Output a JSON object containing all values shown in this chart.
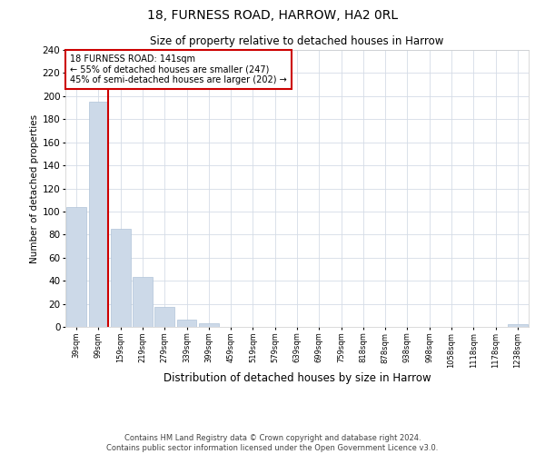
{
  "title": "18, FURNESS ROAD, HARROW, HA2 0RL",
  "subtitle": "Size of property relative to detached houses in Harrow",
  "xlabel": "Distribution of detached houses by size in Harrow",
  "ylabel": "Number of detached properties",
  "bar_labels": [
    "39sqm",
    "99sqm",
    "159sqm",
    "219sqm",
    "279sqm",
    "339sqm",
    "399sqm",
    "459sqm",
    "519sqm",
    "579sqm",
    "639sqm",
    "699sqm",
    "759sqm",
    "818sqm",
    "878sqm",
    "938sqm",
    "998sqm",
    "1058sqm",
    "1118sqm",
    "1178sqm",
    "1238sqm"
  ],
  "bar_values": [
    104,
    195,
    85,
    43,
    17,
    6,
    3,
    0,
    0,
    0,
    0,
    0,
    0,
    0,
    0,
    0,
    0,
    0,
    0,
    0,
    2
  ],
  "bar_color": "#ccd9e8",
  "bar_edge_color": "#b0c4d8",
  "vline_x": 1.42,
  "vline_color": "#cc0000",
  "ylim": [
    0,
    240
  ],
  "yticks": [
    0,
    20,
    40,
    60,
    80,
    100,
    120,
    140,
    160,
    180,
    200,
    220,
    240
  ],
  "annotation_title": "18 FURNESS ROAD: 141sqm",
  "annotation_line1": "← 55% of detached houses are smaller (247)",
  "annotation_line2": "45% of semi-detached houses are larger (202) →",
  "annotation_box_color": "#ffffff",
  "annotation_box_edge": "#cc0000",
  "footer_line1": "Contains HM Land Registry data © Crown copyright and database right 2024.",
  "footer_line2": "Contains public sector information licensed under the Open Government Licence v3.0.",
  "background_color": "#ffffff",
  "grid_color": "#d4dce6"
}
